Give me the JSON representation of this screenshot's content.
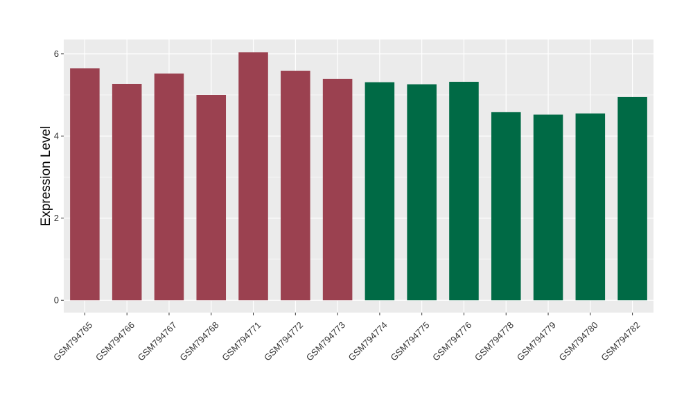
{
  "chart_data": {
    "type": "bar",
    "ylabel": "Expression Level",
    "xlabel": "",
    "ylim": [
      -0.3,
      6.35
    ],
    "yticks": [
      0,
      2,
      4,
      6
    ],
    "grid": true,
    "panel_background": "#ebebeb",
    "gridline_color": "#ffffff",
    "categories": [
      "GSM794765",
      "GSM794766",
      "GSM794767",
      "GSM794768",
      "GSM794771",
      "GSM794772",
      "GSM794773",
      "GSM794774",
      "GSM794775",
      "GSM794776",
      "GSM794778",
      "GSM794779",
      "GSM794780",
      "GSM794782"
    ],
    "values": [
      5.65,
      5.27,
      5.52,
      5.0,
      6.04,
      5.59,
      5.39,
      5.31,
      5.26,
      5.32,
      4.58,
      4.52,
      4.55,
      4.95
    ],
    "colors": [
      "#9b4150",
      "#9b4150",
      "#9b4150",
      "#9b4150",
      "#9b4150",
      "#9b4150",
      "#9b4150",
      "#006a45",
      "#006a45",
      "#006a45",
      "#006a45",
      "#006a45",
      "#006a45",
      "#006a45"
    ]
  }
}
